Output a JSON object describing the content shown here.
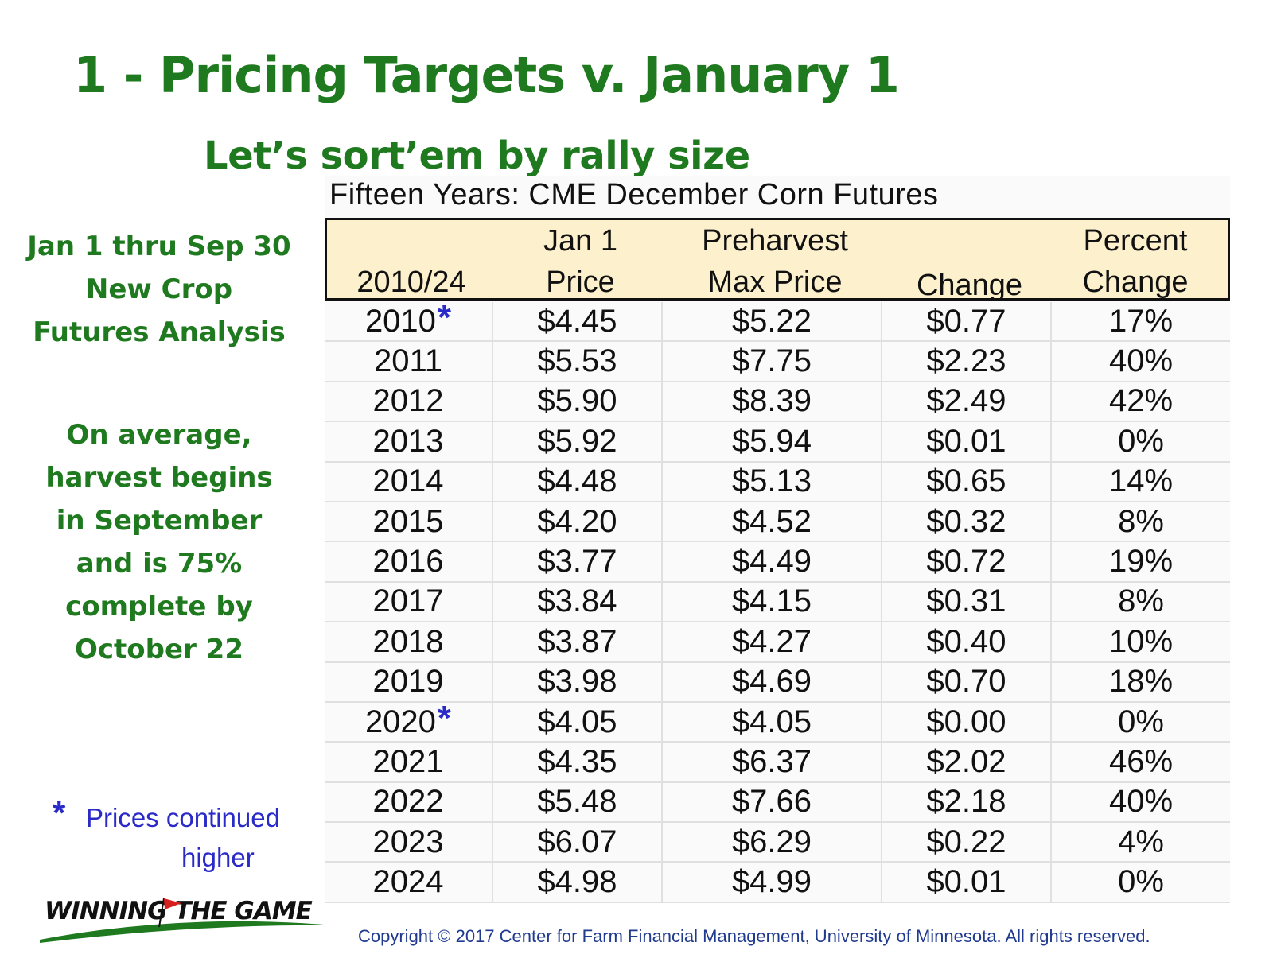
{
  "slide": {
    "title": "1 - Pricing Targets v. January 1",
    "subtitle": "Let’s sort’em by rally size"
  },
  "sidebar": {
    "block1": [
      "Jan 1 thru Sep 30",
      "New Crop",
      "Futures Analysis"
    ],
    "block2": [
      "On average,",
      "harvest begins",
      "in September",
      "and is 75%",
      "complete by",
      "October 22"
    ],
    "note_star": "*",
    "note_lines": [
      "Prices continued",
      "higher"
    ]
  },
  "table": {
    "title": "Fifteen Years: CME December Corn Futures",
    "headers": {
      "col0": [
        "",
        "2010/24"
      ],
      "col1": [
        "Jan 1",
        "Price"
      ],
      "col2": [
        "Preharvest",
        "Max Price"
      ],
      "col3": [
        "",
        "Change"
      ],
      "col4": [
        "Percent",
        "Change"
      ]
    },
    "rows": [
      {
        "year": "2010",
        "star": "*",
        "jan1": "$4.45",
        "max": "$5.22",
        "change": "$0.77",
        "pct": "17%"
      },
      {
        "year": "2011",
        "star": "",
        "jan1": "$5.53",
        "max": "$7.75",
        "change": "$2.23",
        "pct": "40%"
      },
      {
        "year": "2012",
        "star": "",
        "jan1": "$5.90",
        "max": "$8.39",
        "change": "$2.49",
        "pct": "42%"
      },
      {
        "year": "2013",
        "star": "",
        "jan1": "$5.92",
        "max": "$5.94",
        "change": "$0.01",
        "pct": "0%"
      },
      {
        "year": "2014",
        "star": "",
        "jan1": "$4.48",
        "max": "$5.13",
        "change": "$0.65",
        "pct": "14%"
      },
      {
        "year": "2015",
        "star": "",
        "jan1": "$4.20",
        "max": "$4.52",
        "change": "$0.32",
        "pct": "8%"
      },
      {
        "year": "2016",
        "star": "",
        "jan1": "$3.77",
        "max": "$4.49",
        "change": "$0.72",
        "pct": "19%"
      },
      {
        "year": "2017",
        "star": "",
        "jan1": "$3.84",
        "max": "$4.15",
        "change": "$0.31",
        "pct": "8%"
      },
      {
        "year": "2018",
        "star": "",
        "jan1": "$3.87",
        "max": "$4.27",
        "change": "$0.40",
        "pct": "10%"
      },
      {
        "year": "2019",
        "star": "",
        "jan1": "$3.98",
        "max": "$4.69",
        "change": "$0.70",
        "pct": "18%"
      },
      {
        "year": "2020",
        "star": "*",
        "jan1": "$4.05",
        "max": "$4.05",
        "change": "$0.00",
        "pct": "0%"
      },
      {
        "year": "2021",
        "star": "",
        "jan1": "$4.35",
        "max": "$6.37",
        "change": "$2.02",
        "pct": "46%"
      },
      {
        "year": "2022",
        "star": "",
        "jan1": "$5.48",
        "max": "$7.66",
        "change": "$2.18",
        "pct": "40%"
      },
      {
        "year": "2023",
        "star": "",
        "jan1": "$6.07",
        "max": "$6.29",
        "change": "$0.22",
        "pct": "4%"
      },
      {
        "year": "2024",
        "star": "",
        "jan1": "$4.98",
        "max": "$4.99",
        "change": "$0.01",
        "pct": "0%"
      }
    ]
  },
  "footer": {
    "logo_text": "WINNING THE GAME",
    "copyright": "Copyright © 2017 Center for Farm Financial Management, University of Minnesota. All rights reserved."
  },
  "colors": {
    "title_green": "#1f7a1f",
    "note_blue": "#2a2ac8",
    "header_fill": "#fdf0cc",
    "logo_red": "#d62020"
  }
}
